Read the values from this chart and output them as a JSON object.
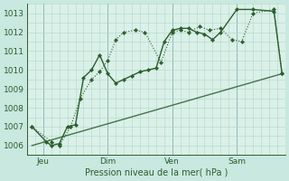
{
  "xlabel": "Pression niveau de la mer( hPa )",
  "bg_color": "#c8e8e0",
  "plot_bg_color": "#daf0e8",
  "grid_color": "#b0d8c8",
  "line_color": "#2d5e2d",
  "xlim": [
    0,
    16
  ],
  "ylim": [
    1005.5,
    1013.5
  ],
  "yticks": [
    1006,
    1007,
    1008,
    1009,
    1010,
    1011,
    1012,
    1013
  ],
  "xtick_positions": [
    1,
    5,
    9,
    13
  ],
  "xtick_labels": [
    "Jeu",
    "Dim",
    "Ven",
    "Sam"
  ],
  "vline_positions": [
    1,
    5,
    9,
    13
  ],
  "series1_x": [
    0.3,
    1.5,
    2.0,
    2.7,
    3.3,
    4.0,
    4.5,
    5.0,
    5.5,
    6.0,
    6.7,
    7.3,
    8.3,
    9.0,
    9.5,
    10.0,
    10.7,
    11.3,
    12.0,
    12.7,
    13.3,
    14.0,
    15.3,
    15.8
  ],
  "series1_y": [
    1007.0,
    1006.2,
    1006.0,
    1007.0,
    1008.5,
    1009.5,
    1009.9,
    1010.5,
    1011.6,
    1012.0,
    1012.1,
    1012.0,
    1010.4,
    1012.0,
    1012.1,
    1012.0,
    1012.3,
    1012.1,
    1012.2,
    1011.6,
    1011.5,
    1013.0,
    1013.2,
    1009.8
  ],
  "series2_x": [
    0.3,
    1.2,
    1.5,
    2.0,
    2.5,
    3.0,
    3.5,
    4.0,
    4.5,
    5.0,
    5.5,
    6.0,
    6.5,
    7.0,
    7.5,
    8.0,
    8.5,
    9.0,
    9.5,
    10.0,
    10.5,
    11.0,
    11.5,
    12.0,
    13.0,
    14.0,
    15.3,
    15.8
  ],
  "series2_y": [
    1007.0,
    1006.2,
    1006.0,
    1006.1,
    1007.0,
    1007.1,
    1009.6,
    1010.0,
    1010.8,
    1009.8,
    1009.3,
    1009.5,
    1009.7,
    1009.9,
    1010.0,
    1010.1,
    1011.5,
    1012.1,
    1012.2,
    1012.2,
    1012.0,
    1011.9,
    1011.6,
    1012.0,
    1013.2,
    1013.2,
    1013.1,
    1009.8
  ],
  "series3_x": [
    0.3,
    15.8
  ],
  "series3_y": [
    1006.0,
    1009.8
  ]
}
